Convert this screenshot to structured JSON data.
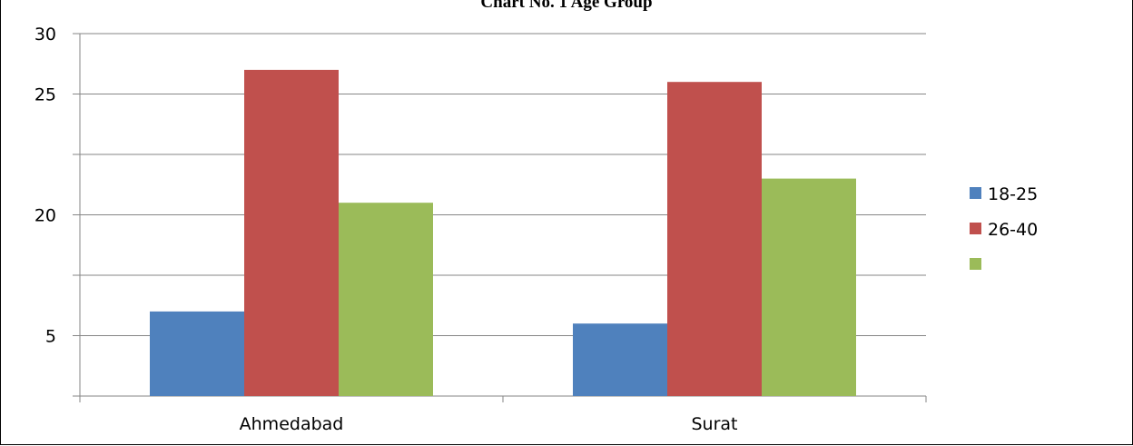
{
  "chart_data": {
    "type": "bar",
    "title": "Chart No. 1 Age Group",
    "categories": [
      "Ahmedabad",
      "Surat"
    ],
    "y_tick_labels": [
      "5",
      "20",
      "25",
      "30"
    ],
    "ylim": [
      0,
      30
    ],
    "grid": true,
    "legend_position": "right",
    "series": [
      {
        "name": "18-25",
        "color": "#4F81BD",
        "values": [
          7,
          6
        ]
      },
      {
        "name": "26-40",
        "color": "#C0504D",
        "values": [
          27,
          26
        ]
      },
      {
        "name": "",
        "color": "#9BBB59",
        "values": [
          16,
          18
        ]
      }
    ]
  }
}
